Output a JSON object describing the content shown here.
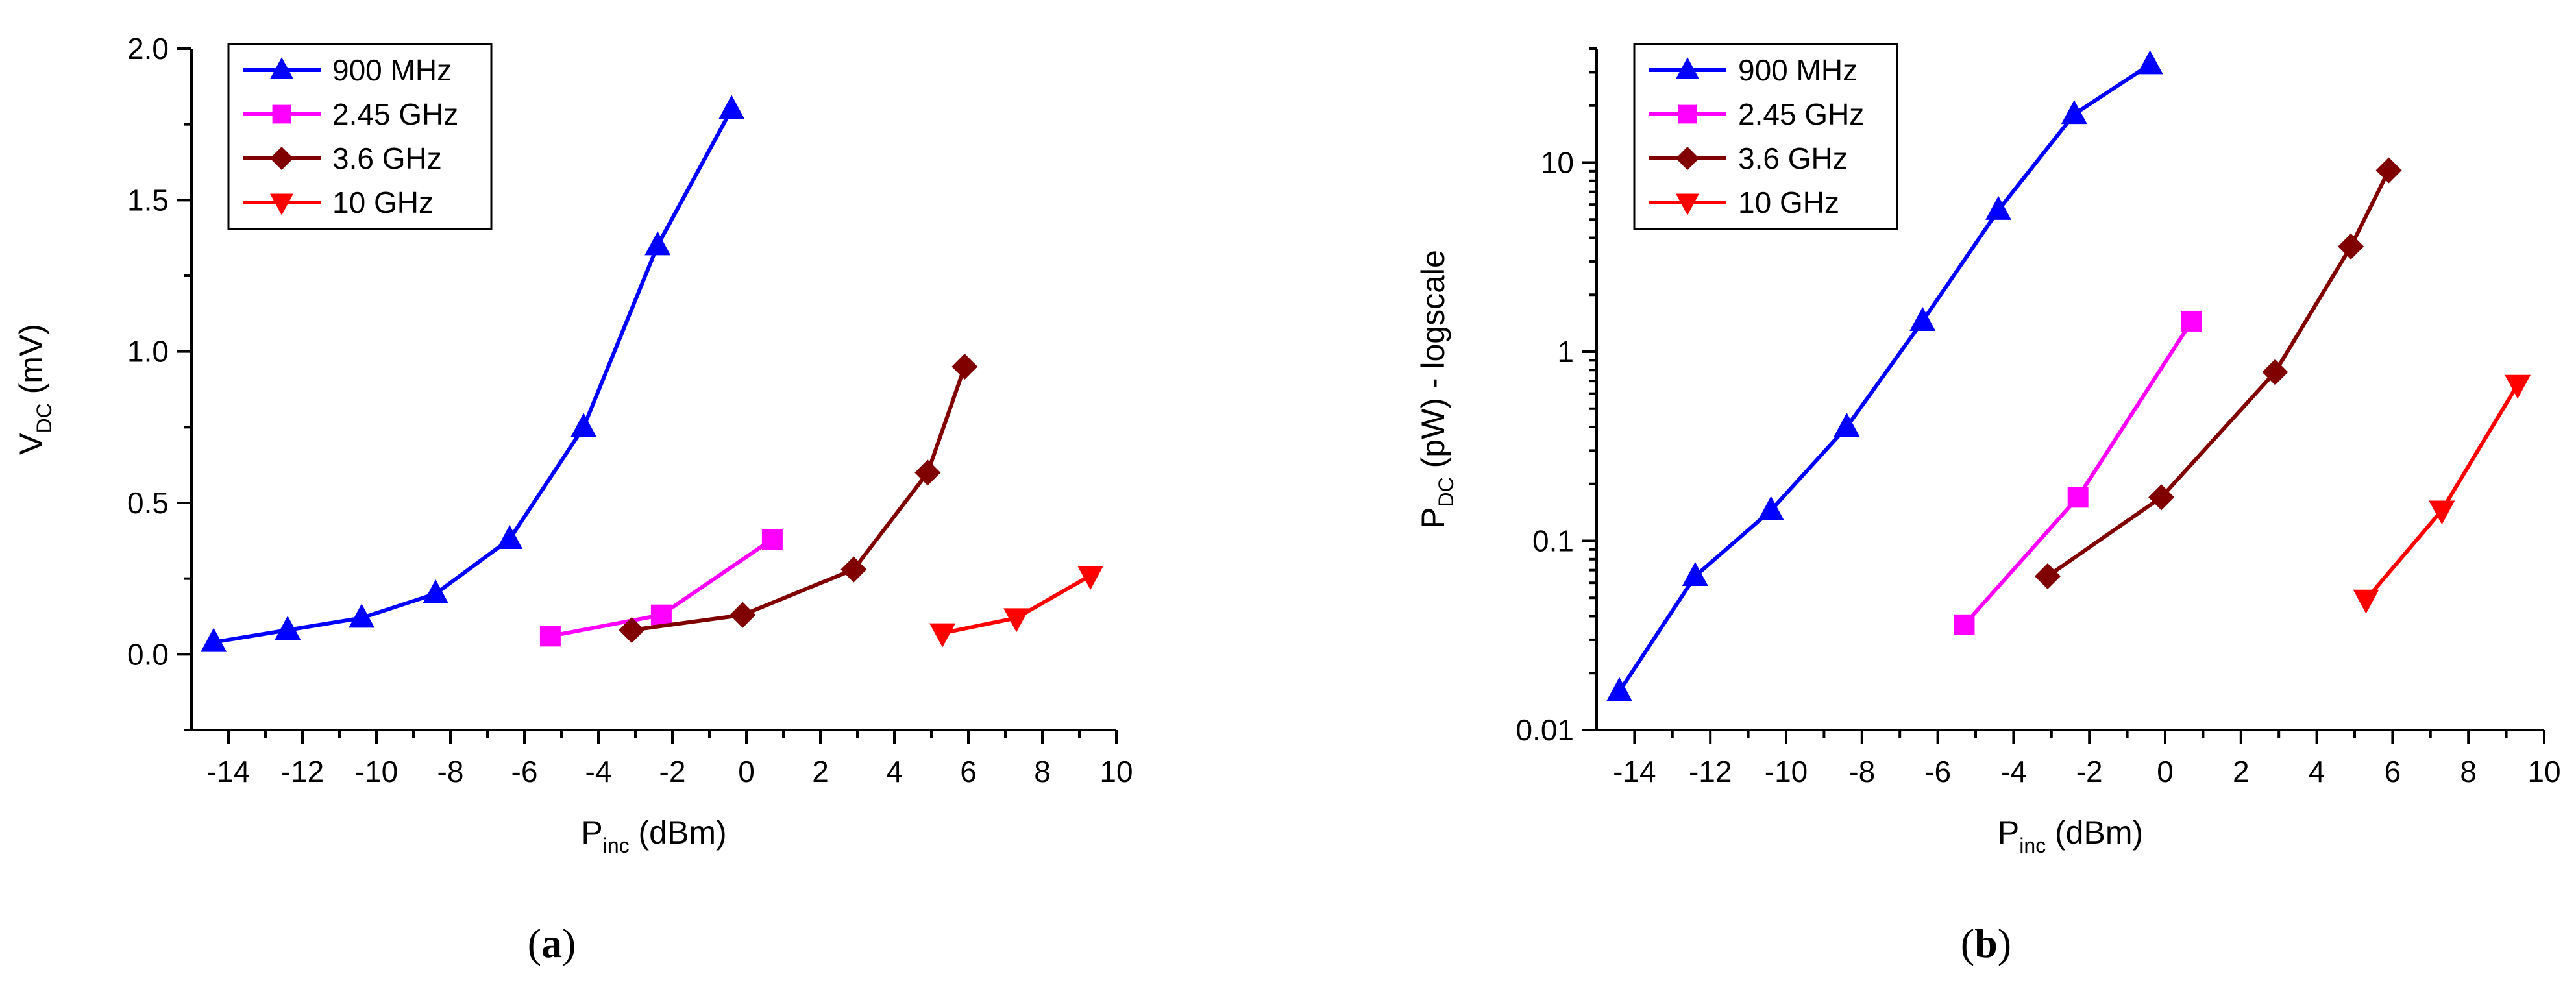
{
  "chart_data": [
    {
      "type": "line",
      "panel_label": "a",
      "xlabel_main": "P",
      "xlabel_sub": "inc",
      "xlabel_unit": " (dBm)",
      "ylabel_main": "V",
      "ylabel_sub": "DC",
      "ylabel_unit": " (mV)",
      "xlim": [
        -15,
        10
      ],
      "ylim": [
        -0.25,
        2.0
      ],
      "yscale": "linear",
      "xticks": [
        -14,
        -12,
        -10,
        -8,
        -6,
        -4,
        -2,
        0,
        2,
        4,
        6,
        8,
        10
      ],
      "yticks": [
        0.0,
        0.5,
        1.0,
        1.5,
        2.0
      ],
      "ytick_labels": [
        "0.0",
        "0.5",
        "1.0",
        "1.5",
        "2.0"
      ],
      "legend_position": "top-left",
      "series": [
        {
          "name": "900 MHz",
          "color": "#0000ff",
          "marker": "triangle-up",
          "x": [
            -14.4,
            -12.4,
            -10.4,
            -8.4,
            -6.4,
            -4.4,
            -2.4,
            -0.4
          ],
          "y": [
            0.04,
            0.08,
            0.12,
            0.2,
            0.38,
            0.75,
            1.35,
            1.8
          ]
        },
        {
          "name": "2.45 GHz",
          "color": "#ff00ff",
          "marker": "square",
          "x": [
            -5.3,
            -2.3,
            0.7
          ],
          "y": [
            0.06,
            0.13,
            0.38
          ]
        },
        {
          "name": "3.6 GHz",
          "color": "#800000",
          "marker": "diamond",
          "x": [
            -3.1,
            -0.1,
            2.9,
            4.9,
            5.9
          ],
          "y": [
            0.08,
            0.13,
            0.28,
            0.6,
            0.95
          ]
        },
        {
          "name": "10 GHz",
          "color": "#ff0000",
          "marker": "triangle-down",
          "x": [
            5.3,
            7.3,
            9.3
          ],
          "y": [
            0.07,
            0.12,
            0.26
          ]
        }
      ]
    },
    {
      "type": "line",
      "panel_label": "b",
      "xlabel_main": "P",
      "xlabel_sub": "inc",
      "xlabel_unit": " (dBm)",
      "ylabel_main": "P",
      "ylabel_sub": "DC",
      "ylabel_unit": " (pW) - logscale",
      "xlim": [
        -15,
        10
      ],
      "ylim": [
        0.01,
        40
      ],
      "yscale": "log",
      "xticks": [
        -14,
        -12,
        -10,
        -8,
        -6,
        -4,
        -2,
        0,
        2,
        4,
        6,
        8,
        10
      ],
      "yticks": [
        0.01,
        0.1,
        1,
        10
      ],
      "ytick_labels": [
        "0.01",
        "0.1",
        "1",
        "10"
      ],
      "legend_position": "top-left",
      "series": [
        {
          "name": "900 MHz",
          "color": "#0000ff",
          "marker": "triangle-up",
          "x": [
            -14.4,
            -12.4,
            -10.4,
            -8.4,
            -6.4,
            -4.4,
            -2.4,
            -0.4
          ],
          "y": [
            0.016,
            0.065,
            0.145,
            0.4,
            1.45,
            5.6,
            18,
            33
          ]
        },
        {
          "name": "2.45 GHz",
          "color": "#ff00ff",
          "marker": "square",
          "x": [
            -5.3,
            -2.3,
            0.7
          ],
          "y": [
            0.036,
            0.17,
            1.45
          ]
        },
        {
          "name": "3.6 GHz",
          "color": "#800000",
          "marker": "diamond",
          "x": [
            -3.1,
            -0.1,
            2.9,
            4.9,
            5.9
          ],
          "y": [
            0.065,
            0.17,
            0.78,
            3.6,
            9.1
          ]
        },
        {
          "name": "10 GHz",
          "color": "#ff0000",
          "marker": "triangle-down",
          "x": [
            5.3,
            7.3,
            9.3
          ],
          "y": [
            0.049,
            0.145,
            0.67
          ]
        }
      ]
    }
  ]
}
